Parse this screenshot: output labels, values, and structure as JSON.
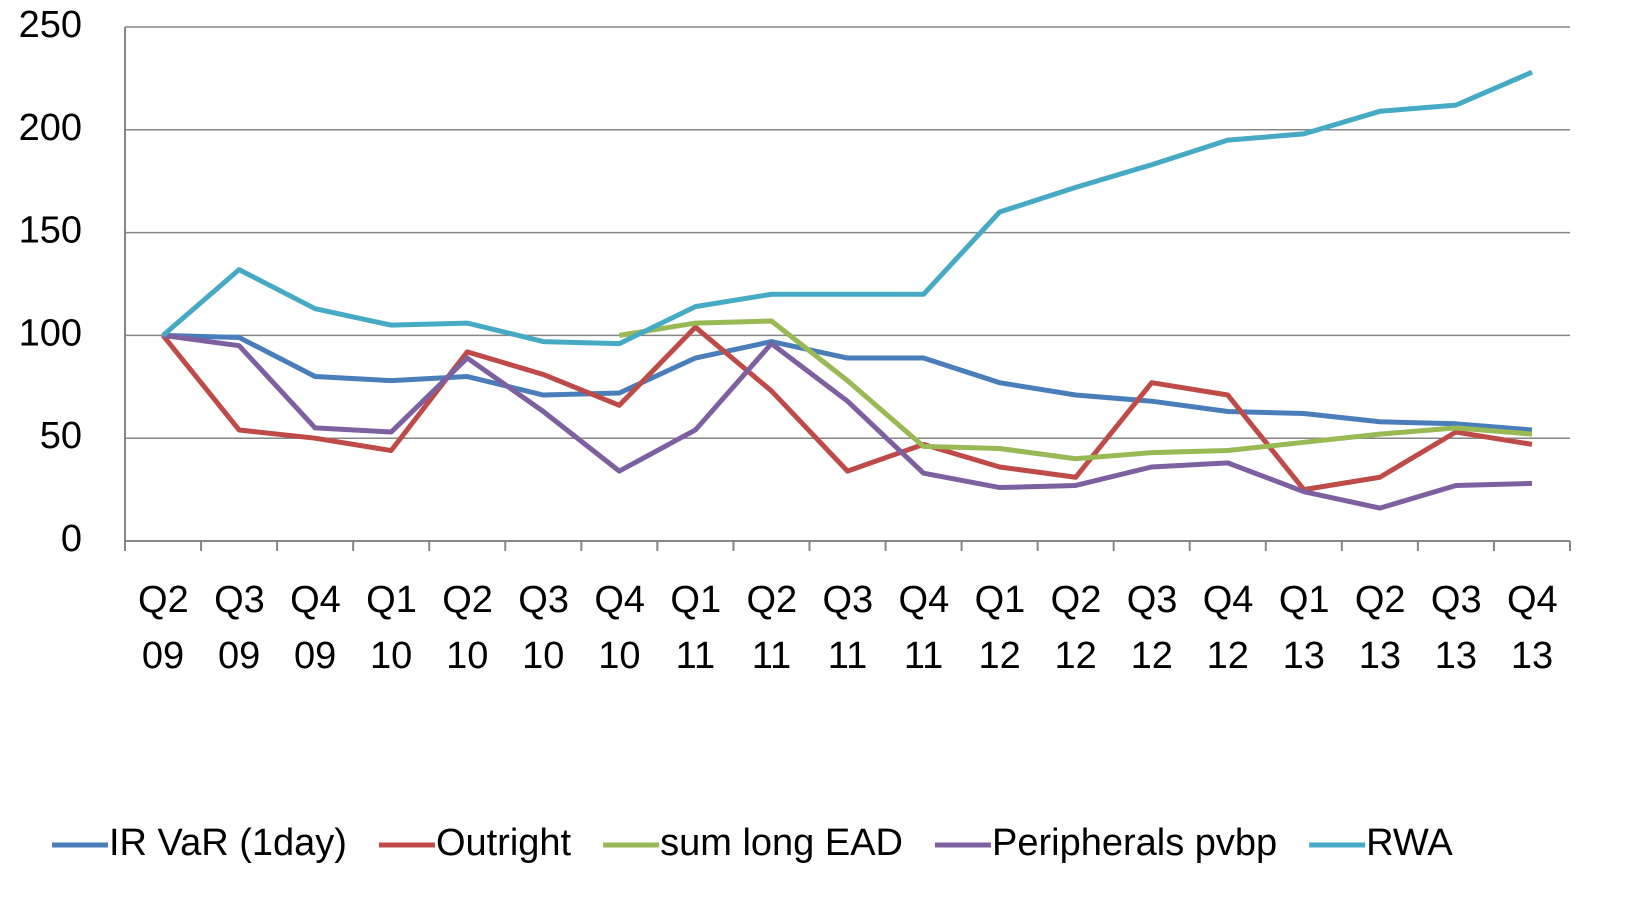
{
  "chart_data": {
    "type": "line",
    "categories": [
      "Q2 09",
      "Q3 09",
      "Q4 09",
      "Q1 10",
      "Q2 10",
      "Q3 10",
      "Q4 10",
      "Q1 11",
      "Q2 11",
      "Q3 11",
      "Q4 11",
      "Q1 12",
      "Q2 12",
      "Q3 12",
      "Q4 12",
      "Q1 13",
      "Q2 13",
      "Q3 13",
      "Q4 13"
    ],
    "series": [
      {
        "name": "IR VaR (1day)",
        "color": "#4a7ebb",
        "values": [
          100,
          99,
          80,
          78,
          80,
          71,
          72,
          89,
          97,
          89,
          89,
          77,
          71,
          68,
          63,
          62,
          58,
          57,
          54
        ]
      },
      {
        "name": "Outright",
        "color": "#be4b48",
        "values": [
          100,
          54,
          50,
          44,
          92,
          81,
          66,
          104,
          73,
          34,
          47,
          36,
          31,
          77,
          71,
          25,
          31,
          53,
          47
        ]
      },
      {
        "name": "sum long EAD",
        "color": "#98b954",
        "values": [
          null,
          null,
          null,
          null,
          null,
          null,
          100,
          106,
          107,
          78,
          46,
          45,
          40,
          43,
          44,
          48,
          52,
          55,
          52
        ]
      },
      {
        "name": "Peripherals pvbp",
        "color": "#7d60a0",
        "values": [
          100,
          95,
          55,
          53,
          89,
          63,
          34,
          54,
          96,
          68,
          33,
          26,
          27,
          36,
          38,
          24,
          16,
          27,
          28
        ]
      },
      {
        "name": "RWA",
        "color": "#46aac5",
        "values": [
          100,
          132,
          113,
          105,
          106,
          97,
          96,
          114,
          120,
          120,
          120,
          160,
          172,
          183,
          195,
          198,
          209,
          212,
          228
        ]
      }
    ],
    "ylim": [
      0,
      250
    ],
    "yticks": [
      0,
      50,
      100,
      150,
      200,
      250
    ],
    "grid": true,
    "legend": "bottom"
  }
}
